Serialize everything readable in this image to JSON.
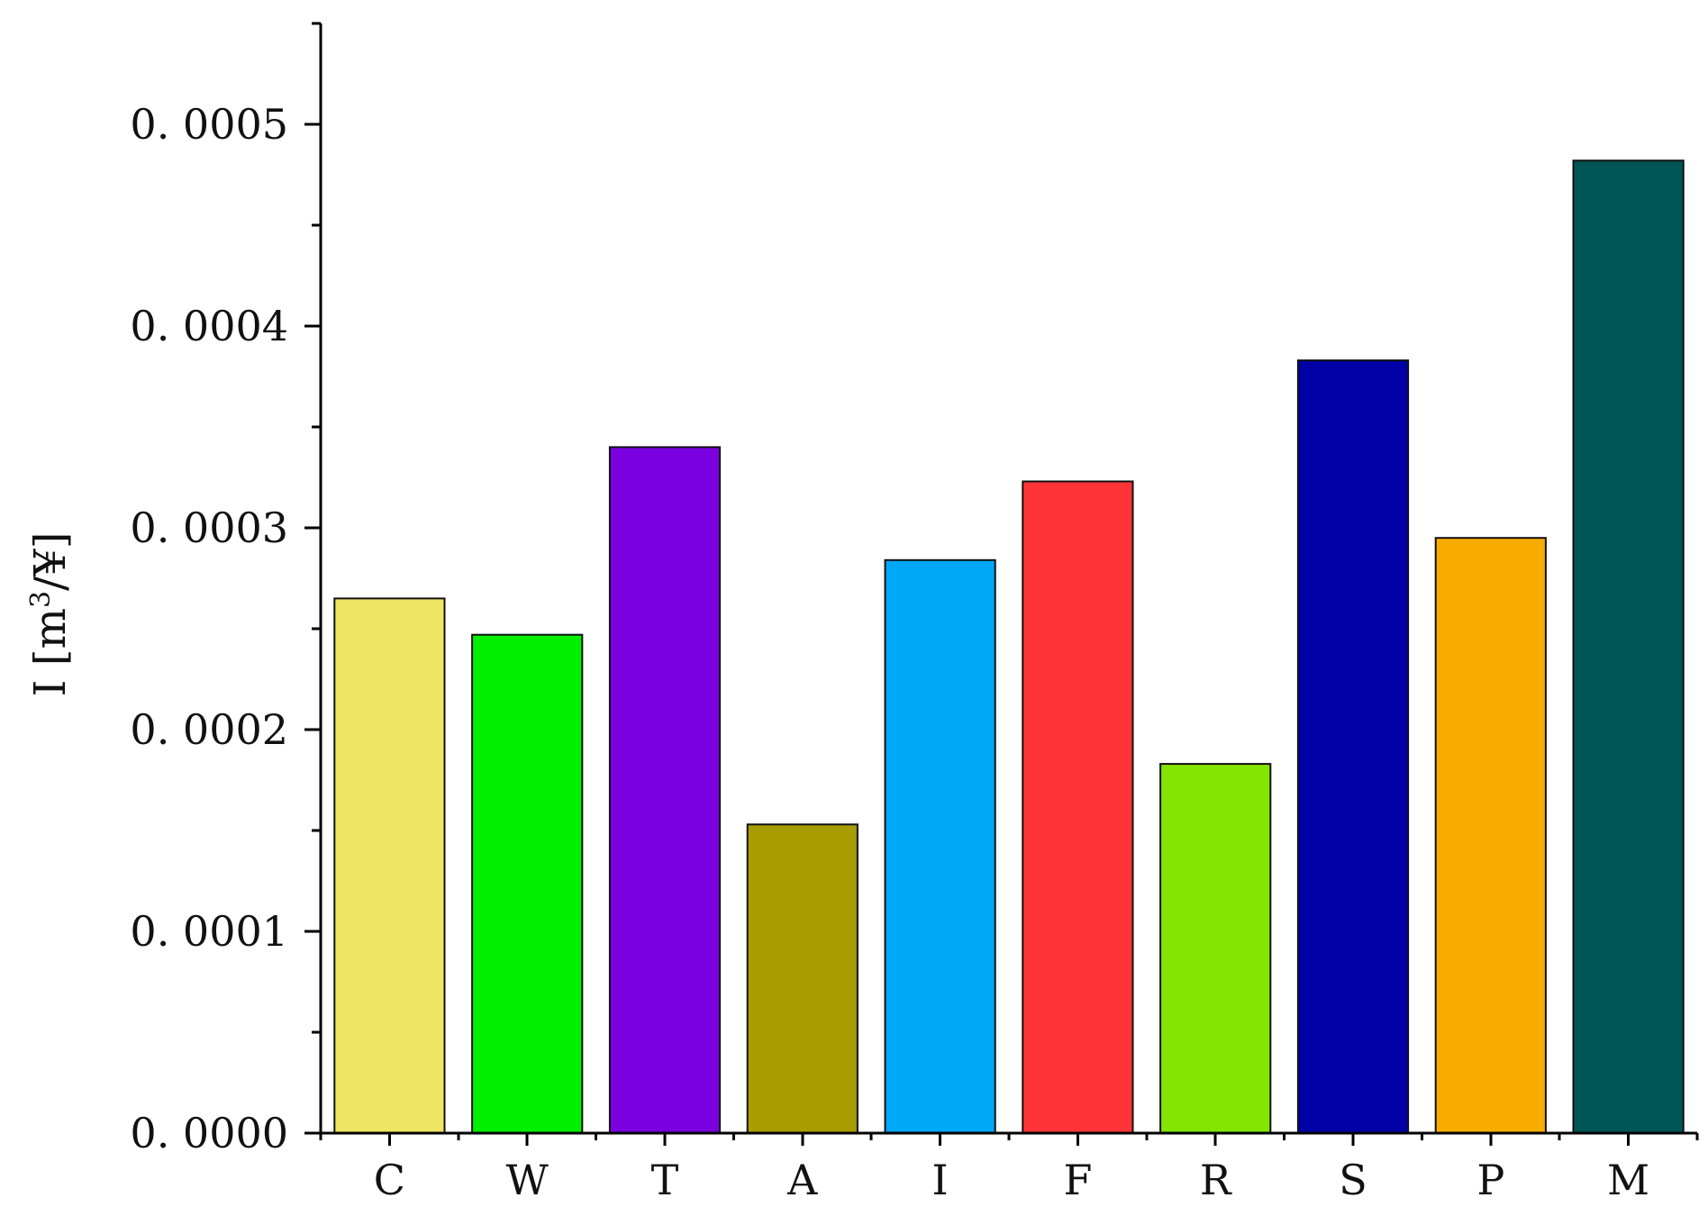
{
  "chart_data": {
    "type": "bar",
    "title": "",
    "xlabel": "",
    "ylabel": {
      "prefix": "I [m",
      "superscript": "3",
      "suffix": "/¥]"
    },
    "categories": [
      "C",
      "W",
      "T",
      "A",
      "I",
      "F",
      "R",
      "S",
      "P",
      "M"
    ],
    "values": [
      0.000265,
      0.000247,
      0.00034,
      0.000153,
      0.000284,
      0.000323,
      0.000183,
      0.000383,
      0.000295,
      0.000482
    ],
    "colors": [
      "#EFE564",
      "#00F000",
      "#7A00E0",
      "#A89C00",
      "#00A8F8",
      "#FF3438",
      "#84E600",
      "#0000A6",
      "#F8AC00",
      "#005656"
    ],
    "ylim": [
      0,
      0.00055
    ],
    "yticks": [
      0.0,
      0.0001,
      0.0002,
      0.0003,
      0.0004,
      0.0005
    ],
    "ytick_labels": [
      "0. 0000",
      "0. 0001",
      "0. 0002",
      "0. 0003",
      "0. 0004",
      "0. 0005"
    ],
    "grid": false,
    "legend": "none"
  }
}
